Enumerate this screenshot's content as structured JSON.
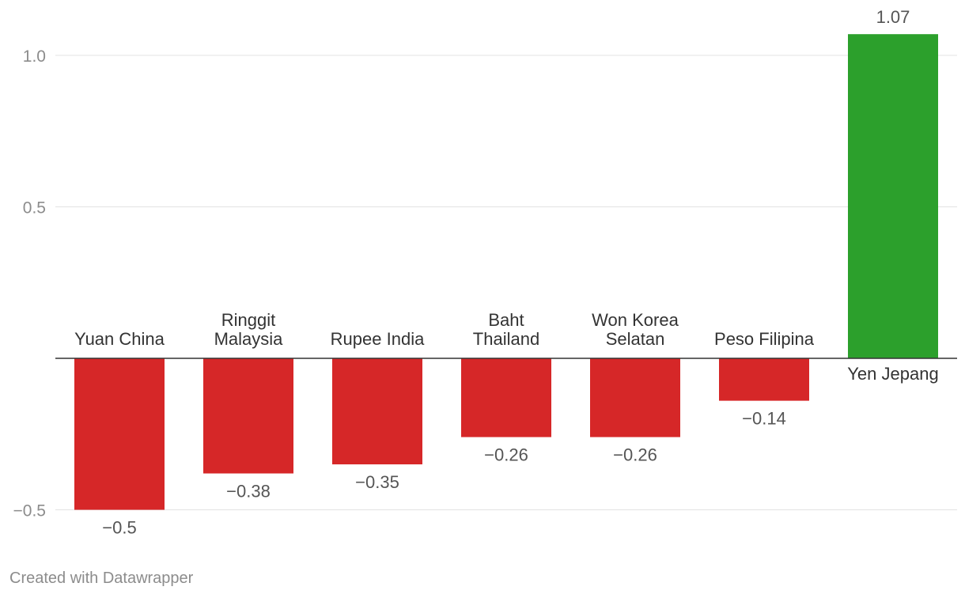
{
  "chart_data": {
    "type": "bar",
    "categories": [
      [
        "Yuan China"
      ],
      [
        "Ringgit",
        "Malaysia"
      ],
      [
        "Rupee India"
      ],
      [
        "Baht",
        "Thailand"
      ],
      [
        "Won Korea",
        "Selatan"
      ],
      [
        "Peso Filipina"
      ],
      [
        "Yen Jepang"
      ]
    ],
    "values": [
      -0.5,
      -0.38,
      -0.35,
      -0.26,
      -0.26,
      -0.14,
      1.07
    ],
    "value_labels": [
      "−0.5",
      "−0.38",
      "−0.35",
      "−0.26",
      "−0.26",
      "−0.14",
      "1.07"
    ],
    "yticks": [
      1.0,
      0.5,
      -0.5
    ],
    "ytick_labels": [
      "1.0",
      "0.5",
      "−0.5"
    ],
    "ylim": [
      -0.5,
      1.07
    ],
    "grid": true,
    "colors": {
      "negative": "#d62728",
      "positive": "#2ca02c"
    }
  },
  "footer": {
    "credit": "Created with Datawrapper"
  }
}
